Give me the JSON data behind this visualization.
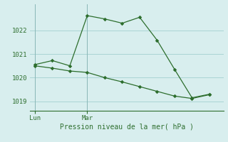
{
  "line1_x": [
    0,
    1,
    2,
    3,
    4,
    5,
    6,
    7,
    8,
    9,
    10
  ],
  "line1_y": [
    1020.55,
    1020.72,
    1020.5,
    1022.62,
    1022.48,
    1022.3,
    1022.55,
    1021.58,
    1020.35,
    1019.15,
    1019.3
  ],
  "line2_x": [
    0,
    1,
    2,
    3,
    4,
    5,
    6,
    7,
    8,
    9,
    10
  ],
  "line2_y": [
    1020.5,
    1020.4,
    1020.28,
    1020.22,
    1020.0,
    1019.82,
    1019.62,
    1019.42,
    1019.22,
    1019.12,
    1019.28
  ],
  "line_color": "#2d6e2d",
  "bg_color": "#d8eeee",
  "grid_color": "#aad4d4",
  "ylabel_ticks": [
    1019,
    1020,
    1021,
    1022
  ],
  "xlabel_label": "Pression niveau de la mer( hPa )",
  "xtick_positions": [
    0,
    3
  ],
  "xtick_labels": [
    "Lun",
    "Mar"
  ],
  "ylim": [
    1018.6,
    1023.1
  ],
  "xlim": [
    -0.3,
    10.8
  ],
  "marker": "D",
  "markersize": 2.8
}
